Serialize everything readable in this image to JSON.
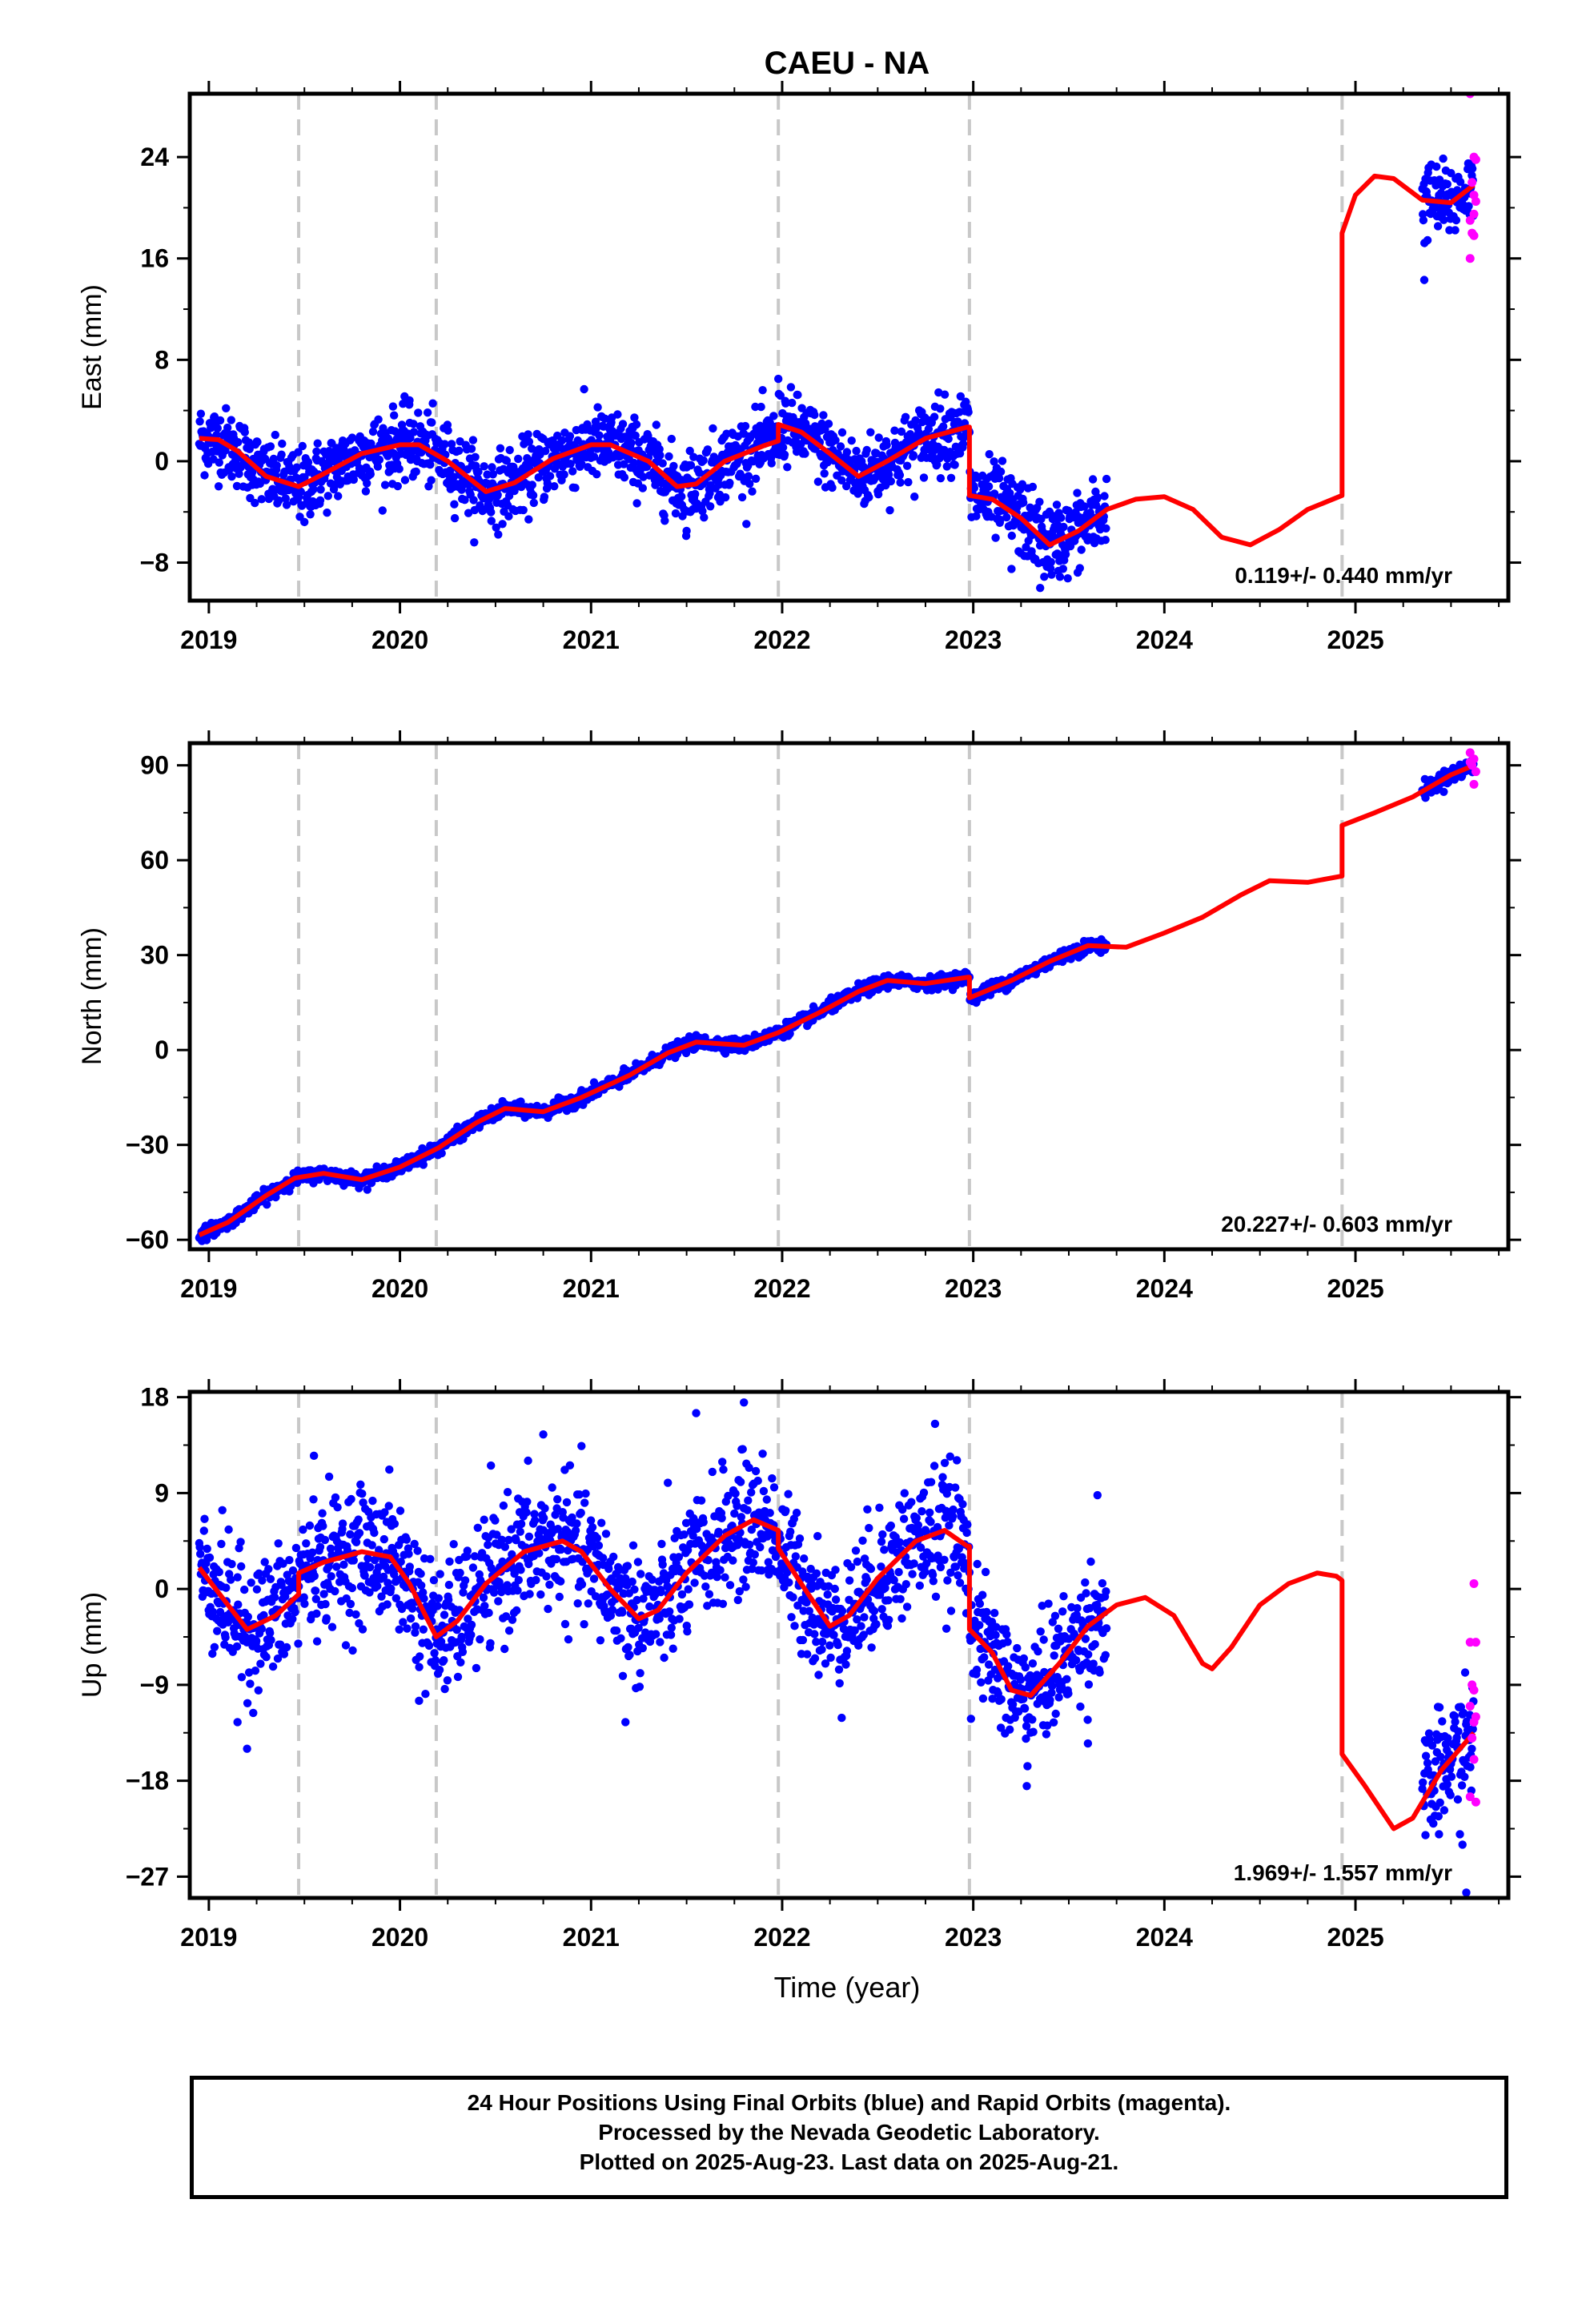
{
  "title": "CAEU - NA",
  "xlabel": "Time (year)",
  "footer": {
    "line1": "24 Hour Positions Using Final Orbits (blue) and Rapid Orbits (magenta).",
    "line2": "Processed by the Nevada Geodetic Laboratory.",
    "line3": "Plotted on 2025-Aug-23. Last data on 2025-Aug-21."
  },
  "colors": {
    "final": "#0000ff",
    "rapid": "#ff00ff",
    "model": "#ff0000",
    "steps": "#c8c8c8"
  },
  "chart_data": [
    {
      "type": "scatter",
      "name": "East",
      "ylabel": "East (mm)",
      "xlim": [
        2018.9,
        2025.8
      ],
      "ylim": [
        -11,
        29
      ],
      "yticks": [
        -8,
        0,
        8,
        16,
        24
      ],
      "xticks": [
        2019,
        2020,
        2021,
        2022,
        2023,
        2024,
        2025
      ],
      "rate": "0.119+/- 0.440 mm/yr",
      "steps": [
        2019.47,
        2020.19,
        2021.98,
        2022.98,
        2024.93
      ],
      "model": [
        [
          2018.95,
          1.8
        ],
        [
          2019.05,
          1.7
        ],
        [
          2019.15,
          0.8
        ],
        [
          2019.3,
          -1.2
        ],
        [
          2019.47,
          -2.0
        ],
        [
          2019.6,
          -1.0
        ],
        [
          2019.8,
          0.6
        ],
        [
          2020.0,
          1.3
        ],
        [
          2020.1,
          1.3
        ],
        [
          2020.25,
          0.0
        ],
        [
          2020.45,
          -2.4
        ],
        [
          2020.6,
          -1.7
        ],
        [
          2020.8,
          0.2
        ],
        [
          2021.0,
          1.3
        ],
        [
          2021.1,
          1.3
        ],
        [
          2021.3,
          0.0
        ],
        [
          2021.45,
          -2.0
        ],
        [
          2021.55,
          -1.8
        ],
        [
          2021.7,
          0.0
        ],
        [
          2021.9,
          1.2
        ],
        [
          2021.98,
          1.6
        ],
        [
          2021.98,
          2.9
        ],
        [
          2022.1,
          2.3
        ],
        [
          2022.25,
          0.6
        ],
        [
          2022.4,
          -1.2
        ],
        [
          2022.55,
          0.0
        ],
        [
          2022.75,
          1.8
        ],
        [
          2022.97,
          2.7
        ],
        [
          2022.98,
          2.7
        ],
        [
          2022.98,
          -2.7
        ],
        [
          2023.1,
          -3.0
        ],
        [
          2023.25,
          -4.5
        ],
        [
          2023.4,
          -6.6
        ],
        [
          2023.55,
          -5.5
        ],
        [
          2023.7,
          -3.8
        ],
        [
          2023.85,
          -3.0
        ],
        [
          2024.0,
          -2.8
        ],
        [
          2024.15,
          -3.8
        ],
        [
          2024.3,
          -6.0
        ],
        [
          2024.45,
          -6.6
        ],
        [
          2024.6,
          -5.4
        ],
        [
          2024.75,
          -3.8
        ],
        [
          2024.93,
          -2.7
        ],
        [
          2024.93,
          18.0
        ],
        [
          2025.0,
          21.0
        ],
        [
          2025.1,
          22.5
        ],
        [
          2025.2,
          22.3
        ],
        [
          2025.35,
          20.6
        ],
        [
          2025.5,
          20.4
        ],
        [
          2025.62,
          21.8
        ]
      ],
      "final_segments": [
        {
          "x0": 2018.95,
          "x1": 2022.98,
          "noise": 1.4,
          "outliers": [
            [
              2019.5,
              -4.8
            ],
            [
              2020.05,
              4.8
            ],
            [
              2021.5,
              -5.5
            ],
            [
              2021.98,
              6.5
            ],
            [
              2022.8,
              4.3
            ]
          ]
        },
        {
          "x0": 2022.98,
          "x1": 2023.7,
          "noise": 1.5,
          "outliers": [
            [
              2023.35,
              -10.0
            ],
            [
              2023.2,
              -8.5
            ]
          ]
        },
        {
          "x0": 2025.35,
          "x1": 2025.62,
          "noise": 1.5,
          "outliers": [
            [
              2025.36,
              14.3
            ]
          ]
        }
      ],
      "rapid_points": [
        [
          2025.6,
          29.0
        ],
        [
          2025.62,
          24.0
        ],
        [
          2025.63,
          23.8
        ],
        [
          2025.61,
          22.0
        ],
        [
          2025.62,
          21.0
        ],
        [
          2025.6,
          19.0
        ],
        [
          2025.61,
          18.0
        ],
        [
          2025.62,
          17.8
        ],
        [
          2025.6,
          16.0
        ],
        [
          2025.63,
          20.5
        ],
        [
          2025.62,
          19.5
        ]
      ]
    },
    {
      "type": "scatter",
      "name": "North",
      "ylabel": "North (mm)",
      "xlim": [
        2018.9,
        2025.8
      ],
      "ylim": [
        -63,
        97
      ],
      "yticks": [
        -60,
        -30,
        0,
        30,
        60,
        90
      ],
      "xticks": [
        2019,
        2020,
        2021,
        2022,
        2023,
        2024,
        2025
      ],
      "rate": "20.227+/- 0.603 mm/yr",
      "steps": [
        2019.47,
        2020.19,
        2021.98,
        2022.98,
        2024.93
      ],
      "model": [
        [
          2018.95,
          -58.5
        ],
        [
          2019.1,
          -54.5
        ],
        [
          2019.3,
          -46
        ],
        [
          2019.45,
          -40.5
        ],
        [
          2019.6,
          -39
        ],
        [
          2019.8,
          -41
        ],
        [
          2020.0,
          -37
        ],
        [
          2020.2,
          -31
        ],
        [
          2020.4,
          -23
        ],
        [
          2020.55,
          -18.5
        ],
        [
          2020.75,
          -19.5
        ],
        [
          2020.95,
          -15
        ],
        [
          2021.2,
          -8
        ],
        [
          2021.4,
          -1
        ],
        [
          2021.55,
          2.5
        ],
        [
          2021.8,
          1.5
        ],
        [
          2021.98,
          5.5
        ],
        [
          2022.2,
          12
        ],
        [
          2022.4,
          18.5
        ],
        [
          2022.55,
          22
        ],
        [
          2022.75,
          21
        ],
        [
          2022.97,
          23
        ],
        [
          2022.98,
          23
        ],
        [
          2022.98,
          16.5
        ],
        [
          2023.2,
          22
        ],
        [
          2023.4,
          28
        ],
        [
          2023.6,
          33
        ],
        [
          2023.8,
          32.5
        ],
        [
          2024.0,
          37
        ],
        [
          2024.2,
          42
        ],
        [
          2024.4,
          49
        ],
        [
          2024.55,
          53.5
        ],
        [
          2024.75,
          53
        ],
        [
          2024.93,
          55
        ],
        [
          2024.93,
          71
        ],
        [
          2025.1,
          75
        ],
        [
          2025.3,
          80
        ],
        [
          2025.5,
          87
        ],
        [
          2025.62,
          90
        ]
      ],
      "final_segments": [
        {
          "x0": 2018.95,
          "x1": 2022.98,
          "noise": 1.0,
          "outliers": []
        },
        {
          "x0": 2022.98,
          "x1": 2023.7,
          "noise": 1.0,
          "outliers": []
        },
        {
          "x0": 2025.35,
          "x1": 2025.62,
          "noise": 1.2,
          "outliers": []
        }
      ],
      "rapid_points": [
        [
          2025.6,
          94
        ],
        [
          2025.62,
          92
        ],
        [
          2025.61,
          90
        ],
        [
          2025.63,
          88
        ],
        [
          2025.62,
          84
        ],
        [
          2025.6,
          91
        ]
      ]
    },
    {
      "type": "scatter",
      "name": "Up",
      "ylabel": "Up (mm)",
      "xlim": [
        2018.9,
        2025.8
      ],
      "ylim": [
        -29,
        18.5
      ],
      "yticks": [
        -27,
        -18,
        -9,
        0,
        9,
        18
      ],
      "xticks": [
        2019,
        2020,
        2021,
        2022,
        2023,
        2024,
        2025
      ],
      "rate": "1.969+/- 1.557 mm/yr",
      "steps": [
        2019.47,
        2020.19,
        2021.98,
        2022.98,
        2024.93
      ],
      "model": [
        [
          2018.95,
          2.0
        ],
        [
          2019.1,
          -1.5
        ],
        [
          2019.2,
          -3.8
        ],
        [
          2019.35,
          -2.5
        ],
        [
          2019.47,
          -0.5
        ],
        [
          2019.47,
          1.5
        ],
        [
          2019.6,
          2.5
        ],
        [
          2019.8,
          3.5
        ],
        [
          2019.95,
          3.0
        ],
        [
          2020.05,
          0.5
        ],
        [
          2020.19,
          -4.5
        ],
        [
          2020.3,
          -3.0
        ],
        [
          2020.45,
          0.5
        ],
        [
          2020.65,
          3.5
        ],
        [
          2020.85,
          4.5
        ],
        [
          2020.95,
          3.5
        ],
        [
          2021.1,
          0.0
        ],
        [
          2021.25,
          -2.8
        ],
        [
          2021.35,
          -2.0
        ],
        [
          2021.5,
          1.5
        ],
        [
          2021.7,
          5.0
        ],
        [
          2021.85,
          6.5
        ],
        [
          2021.98,
          5.5
        ],
        [
          2021.98,
          3.8
        ],
        [
          2022.1,
          0.5
        ],
        [
          2022.25,
          -3.5
        ],
        [
          2022.35,
          -2.5
        ],
        [
          2022.5,
          1.0
        ],
        [
          2022.7,
          4.5
        ],
        [
          2022.85,
          5.5
        ],
        [
          2022.97,
          4.0
        ],
        [
          2022.98,
          4.0
        ],
        [
          2022.98,
          -3.8
        ],
        [
          2023.1,
          -6.0
        ],
        [
          2023.2,
          -9.5
        ],
        [
          2023.3,
          -10.0
        ],
        [
          2023.45,
          -7.0
        ],
        [
          2023.6,
          -3.5
        ],
        [
          2023.75,
          -1.5
        ],
        [
          2023.9,
          -0.8
        ],
        [
          2024.05,
          -2.5
        ],
        [
          2024.2,
          -7.0
        ],
        [
          2024.25,
          -7.5
        ],
        [
          2024.35,
          -5.5
        ],
        [
          2024.5,
          -1.5
        ],
        [
          2024.65,
          0.5
        ],
        [
          2024.8,
          1.5
        ],
        [
          2024.9,
          1.2
        ],
        [
          2024.93,
          0.8
        ],
        [
          2024.93,
          -15.5
        ],
        [
          2025.05,
          -18.5
        ],
        [
          2025.2,
          -22.5
        ],
        [
          2025.3,
          -21.5
        ],
        [
          2025.45,
          -17.0
        ],
        [
          2025.62,
          -13.5
        ]
      ],
      "final_segments": [
        {
          "x0": 2018.95,
          "x1": 2022.98,
          "noise": 3.0,
          "outliers": [
            [
              2019.2,
              -15.0
            ],
            [
              2019.15,
              -12.5
            ],
            [
              2021.8,
              17.5
            ],
            [
              2021.55,
              16.5
            ],
            [
              2021.18,
              -12.5
            ],
            [
              2020.75,
              14.5
            ],
            [
              2022.8,
              15.5
            ],
            [
              2019.55,
              12.5
            ],
            [
              2020.1,
              -10.5
            ]
          ]
        },
        {
          "x0": 2022.98,
          "x1": 2023.7,
          "noise": 2.8,
          "outliers": [
            [
              2023.28,
              -18.5
            ],
            [
              2023.65,
              8.8
            ],
            [
              2023.6,
              -14.5
            ]
          ]
        },
        {
          "x0": 2025.35,
          "x1": 2025.62,
          "noise": 2.8,
          "outliers": [
            [
              2025.58,
              -28.5
            ],
            [
              2025.56,
              -24.0
            ]
          ]
        }
      ],
      "rapid_points": [
        [
          2025.62,
          0.5
        ],
        [
          2025.6,
          -5.0
        ],
        [
          2025.63,
          -5.0
        ],
        [
          2025.61,
          -9.0
        ],
        [
          2025.62,
          -9.5
        ],
        [
          2025.6,
          -11.0
        ],
        [
          2025.63,
          -12.0
        ],
        [
          2025.61,
          -14.0
        ],
        [
          2025.62,
          -16.0
        ],
        [
          2025.6,
          -19.5
        ],
        [
          2025.63,
          -20.0
        ],
        [
          2025.62,
          -12.5
        ]
      ]
    }
  ]
}
